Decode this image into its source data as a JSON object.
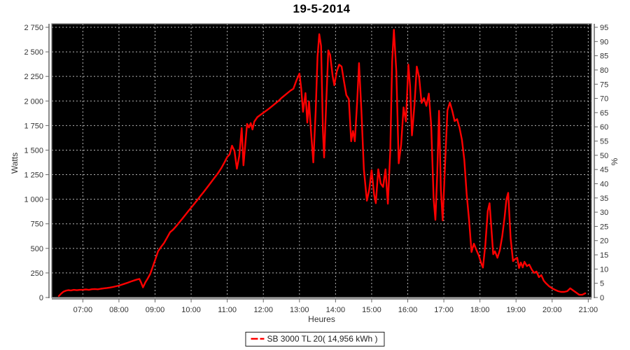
{
  "chart_data": {
    "type": "line",
    "title": "19-5-2014",
    "xlabel": "Heures",
    "ylabel_left": "Watts",
    "ylabel_right": "%",
    "plot_bg": "#000000",
    "grid_color": "#b4b4b4",
    "axis_color": "#666666",
    "border_color": "#808080",
    "text_color": "#333333",
    "x_tick_labels": [
      "07:00",
      "08:00",
      "09:00",
      "10:00",
      "11:00",
      "12:00",
      "13:00",
      "14:00",
      "15:00",
      "16:00",
      "17:00",
      "18:00",
      "19:00",
      "20:00",
      "21:00"
    ],
    "x_tick_start_hour": 7,
    "x_range_hours": [
      6.14,
      21.09
    ],
    "y_left": {
      "min": 0,
      "max": 2750,
      "step": 250,
      "tick_labels": [
        "0",
        "250",
        "500",
        "750",
        "1 000",
        "1 250",
        "1 500",
        "1 750",
        "2 000",
        "2 250",
        "2 500",
        "2 750"
      ]
    },
    "y_right": {
      "min": 0,
      "max": 95,
      "step": 5
    },
    "legend_position": "bottom-center",
    "series": [
      {
        "name": "SB 3000 TL 20( 14,956 kWh )",
        "color": "#ff0000",
        "points": [
          [
            "06:20",
            15
          ],
          [
            "06:24",
            40
          ],
          [
            "06:28",
            60
          ],
          [
            "06:32",
            70
          ],
          [
            "06:36",
            75
          ],
          [
            "06:40",
            72
          ],
          [
            "06:45",
            78
          ],
          [
            "06:50",
            74
          ],
          [
            "06:55",
            78
          ],
          [
            "07:00",
            78
          ],
          [
            "07:05",
            82
          ],
          [
            "07:10",
            78
          ],
          [
            "07:15",
            84
          ],
          [
            "07:20",
            86
          ],
          [
            "07:25",
            83
          ],
          [
            "07:30",
            89
          ],
          [
            "07:35",
            93
          ],
          [
            "07:40",
            97
          ],
          [
            "07:45",
            101
          ],
          [
            "07:50",
            107
          ],
          [
            "07:55",
            114
          ],
          [
            "08:00",
            121
          ],
          [
            "08:05",
            131
          ],
          [
            "08:10",
            141
          ],
          [
            "08:15",
            152
          ],
          [
            "08:20",
            163
          ],
          [
            "08:25",
            173
          ],
          [
            "08:30",
            183
          ],
          [
            "08:34",
            189
          ],
          [
            "08:37",
            150
          ],
          [
            "08:40",
            103
          ],
          [
            "08:44",
            155
          ],
          [
            "08:48",
            195
          ],
          [
            "08:52",
            240
          ],
          [
            "08:56",
            310
          ],
          [
            "09:00",
            380
          ],
          [
            "09:05",
            470
          ],
          [
            "09:10",
            515
          ],
          [
            "09:15",
            555
          ],
          [
            "09:20",
            610
          ],
          [
            "09:25",
            665
          ],
          [
            "09:30",
            690
          ],
          [
            "09:35",
            725
          ],
          [
            "09:40",
            762
          ],
          [
            "09:45",
            800
          ],
          [
            "09:50",
            838
          ],
          [
            "09:55",
            877
          ],
          [
            "10:00",
            915
          ],
          [
            "10:05",
            952
          ],
          [
            "10:10",
            990
          ],
          [
            "10:15",
            1030
          ],
          [
            "10:20",
            1068
          ],
          [
            "10:25",
            1108
          ],
          [
            "10:30",
            1148
          ],
          [
            "10:35",
            1188
          ],
          [
            "10:40",
            1228
          ],
          [
            "10:45",
            1268
          ],
          [
            "10:50",
            1315
          ],
          [
            "10:55",
            1370
          ],
          [
            "11:00",
            1430
          ],
          [
            "11:04",
            1457
          ],
          [
            "11:08",
            1545
          ],
          [
            "11:12",
            1490
          ],
          [
            "11:16",
            1310
          ],
          [
            "11:20",
            1440
          ],
          [
            "11:24",
            1725
          ],
          [
            "11:27",
            1345
          ],
          [
            "11:30",
            1560
          ],
          [
            "11:33",
            1767
          ],
          [
            "11:36",
            1730
          ],
          [
            "11:39",
            1775
          ],
          [
            "11:42",
            1710
          ],
          [
            "11:45",
            1790
          ],
          [
            "11:50",
            1835
          ],
          [
            "11:55",
            1858
          ],
          [
            "12:00",
            1880
          ],
          [
            "12:05",
            1902
          ],
          [
            "12:10",
            1925
          ],
          [
            "12:15",
            1950
          ],
          [
            "12:20",
            1975
          ],
          [
            "12:25",
            2000
          ],
          [
            "12:30",
            2030
          ],
          [
            "12:35",
            2055
          ],
          [
            "12:40",
            2080
          ],
          [
            "12:45",
            2105
          ],
          [
            "12:50",
            2125
          ],
          [
            "12:55",
            2210
          ],
          [
            "13:00",
            2280
          ],
          [
            "13:03",
            2120
          ],
          [
            "13:06",
            1890
          ],
          [
            "13:10",
            2080
          ],
          [
            "13:13",
            1780
          ],
          [
            "13:16",
            1995
          ],
          [
            "13:19",
            1710
          ],
          [
            "13:23",
            1375
          ],
          [
            "13:27",
            1900
          ],
          [
            "13:30",
            2450
          ],
          [
            "13:33",
            2680
          ],
          [
            "13:36",
            2560
          ],
          [
            "13:39",
            1700
          ],
          [
            "13:41",
            1425
          ],
          [
            "13:44",
            1900
          ],
          [
            "13:48",
            2515
          ],
          [
            "13:51",
            2470
          ],
          [
            "13:55",
            2260
          ],
          [
            "13:58",
            2160
          ],
          [
            "14:02",
            2300
          ],
          [
            "14:06",
            2370
          ],
          [
            "14:10",
            2350
          ],
          [
            "14:14",
            2200
          ],
          [
            "14:18",
            2060
          ],
          [
            "14:22",
            2020
          ],
          [
            "14:26",
            1590
          ],
          [
            "14:29",
            1695
          ],
          [
            "14:32",
            1590
          ],
          [
            "14:36",
            2000
          ],
          [
            "14:39",
            2385
          ],
          [
            "14:43",
            1900
          ],
          [
            "14:47",
            1305
          ],
          [
            "14:52",
            985
          ],
          [
            "14:56",
            1100
          ],
          [
            "15:00",
            1295
          ],
          [
            "15:04",
            1050
          ],
          [
            "15:07",
            960
          ],
          [
            "15:11",
            1305
          ],
          [
            "15:15",
            1160
          ],
          [
            "15:19",
            1125
          ],
          [
            "15:23",
            1305
          ],
          [
            "15:27",
            955
          ],
          [
            "15:31",
            1500
          ],
          [
            "15:34",
            2400
          ],
          [
            "15:37",
            2725
          ],
          [
            "15:41",
            2300
          ],
          [
            "15:45",
            1365
          ],
          [
            "15:49",
            1550
          ],
          [
            "15:53",
            1935
          ],
          [
            "15:57",
            1790
          ],
          [
            "16:01",
            2370
          ],
          [
            "16:04",
            2150
          ],
          [
            "16:07",
            1650
          ],
          [
            "16:11",
            1950
          ],
          [
            "16:15",
            2350
          ],
          [
            "16:19",
            2240
          ],
          [
            "16:23",
            1980
          ],
          [
            "16:27",
            2030
          ],
          [
            "16:31",
            1950
          ],
          [
            "16:35",
            2075
          ],
          [
            "16:39",
            1750
          ],
          [
            "16:43",
            1000
          ],
          [
            "16:46",
            790
          ],
          [
            "16:49",
            1250
          ],
          [
            "16:52",
            1900
          ],
          [
            "16:55",
            1100
          ],
          [
            "16:58",
            785
          ],
          [
            "17:02",
            1350
          ],
          [
            "17:06",
            1905
          ],
          [
            "17:10",
            1985
          ],
          [
            "17:14",
            1900
          ],
          [
            "17:18",
            1795
          ],
          [
            "17:22",
            1815
          ],
          [
            "17:26",
            1730
          ],
          [
            "17:30",
            1605
          ],
          [
            "17:34",
            1400
          ],
          [
            "17:38",
            1050
          ],
          [
            "17:42",
            780
          ],
          [
            "17:46",
            463
          ],
          [
            "17:50",
            548
          ],
          [
            "17:54",
            485
          ],
          [
            "17:58",
            430
          ],
          [
            "18:02",
            350
          ],
          [
            "18:05",
            305
          ],
          [
            "18:09",
            540
          ],
          [
            "18:13",
            880
          ],
          [
            "18:16",
            960
          ],
          [
            "18:19",
            700
          ],
          [
            "18:22",
            440
          ],
          [
            "18:25",
            470
          ],
          [
            "18:29",
            405
          ],
          [
            "18:33",
            480
          ],
          [
            "18:37",
            620
          ],
          [
            "18:41",
            820
          ],
          [
            "18:44",
            1000
          ],
          [
            "18:47",
            1065
          ],
          [
            "18:51",
            600
          ],
          [
            "18:55",
            370
          ],
          [
            "18:58",
            390
          ],
          [
            "19:02",
            405
          ],
          [
            "19:05",
            300
          ],
          [
            "19:08",
            356
          ],
          [
            "19:11",
            306
          ],
          [
            "19:14",
            363
          ],
          [
            "19:18",
            320
          ],
          [
            "19:22",
            335
          ],
          [
            "19:26",
            285
          ],
          [
            "19:30",
            250
          ],
          [
            "19:34",
            264
          ],
          [
            "19:38",
            207
          ],
          [
            "19:42",
            228
          ],
          [
            "19:46",
            171
          ],
          [
            "19:50",
            143
          ],
          [
            "19:55",
            114
          ],
          [
            "20:00",
            93
          ],
          [
            "20:05",
            78
          ],
          [
            "20:10",
            64
          ],
          [
            "20:15",
            57
          ],
          [
            "20:20",
            57
          ],
          [
            "20:25",
            64
          ],
          [
            "20:30",
            93
          ],
          [
            "20:35",
            71
          ],
          [
            "20:40",
            50
          ],
          [
            "20:45",
            28
          ],
          [
            "20:50",
            28
          ],
          [
            "20:55",
            43
          ]
        ]
      }
    ]
  }
}
